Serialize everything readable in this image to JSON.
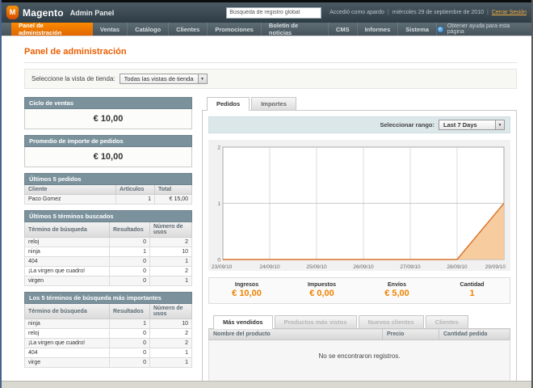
{
  "window": {
    "brand": "Magento",
    "brand_suffix": "Admin Panel",
    "logo_letter": "M",
    "search_value": "Búsqueda de registro global",
    "logged_in_text": "Accedió como apardo",
    "separator": "|",
    "date_text": "miércoles 29 de septiembre de 2010",
    "logout_label": "Cerrar Sesión"
  },
  "nav": {
    "items": [
      {
        "label": "Panel de administración",
        "active": true
      },
      {
        "label": "Ventas",
        "active": false
      },
      {
        "label": "Catálogo",
        "active": false
      },
      {
        "label": "Clientes",
        "active": false
      },
      {
        "label": "Promociones",
        "active": false
      },
      {
        "label": "Boletín de noticias",
        "active": false
      },
      {
        "label": "CMS",
        "active": false
      },
      {
        "label": "Informes",
        "active": false
      },
      {
        "label": "Sistema",
        "active": false
      }
    ],
    "help_label": "Obtener ayuda para esta página"
  },
  "page": {
    "title": "Panel de administración",
    "store_view_label": "Seleccione la vista de tienda:",
    "store_view_value": "Todas las vistas de tienda"
  },
  "sidebar": {
    "sales_box": {
      "title": "Ciclo de ventas",
      "value": "€ 10,00"
    },
    "avg_box": {
      "title": "Promedio de importe de pedidos",
      "value": "€ 10,00"
    },
    "last_orders": {
      "title": "Últimos 5 pedidos",
      "headers": {
        "c0": "Cliente",
        "c1": "Artículos",
        "c2": "Total"
      },
      "rows": [
        {
          "c0": "Paco Gomez",
          "c1": "1",
          "c2": "€ 15,00"
        }
      ]
    },
    "last_terms": {
      "title": "Últimos 5 términos buscados",
      "headers": {
        "c0": "Término de búsqueda",
        "c1": "Resultados",
        "c2": "Número de usos"
      },
      "rows": [
        {
          "c0": "reloj",
          "c1": "0",
          "c2": "2"
        },
        {
          "c0": "ninja",
          "c1": "1",
          "c2": "10"
        },
        {
          "c0": "404",
          "c1": "0",
          "c2": "1"
        },
        {
          "c0": "¡La virgen que cuadro!",
          "c1": "0",
          "c2": "2"
        },
        {
          "c0": "virgen",
          "c1": "0",
          "c2": "1"
        }
      ]
    },
    "top_terms": {
      "title": "Los 5 términos de búsqueda más importantes",
      "headers": {
        "c0": "Término de búsqueda",
        "c1": "Resultados",
        "c2": "Número de usos"
      },
      "rows": [
        {
          "c0": "ninja",
          "c1": "1",
          "c2": "10"
        },
        {
          "c0": "reloj",
          "c1": "0",
          "c2": "2"
        },
        {
          "c0": "¡La virgen que cuadro!",
          "c1": "0",
          "c2": "2"
        },
        {
          "c0": "404",
          "c1": "0",
          "c2": "1"
        },
        {
          "c0": "virge",
          "c1": "0",
          "c2": "1"
        }
      ]
    }
  },
  "main": {
    "tabs": [
      {
        "label": "Pedidos",
        "active": true
      },
      {
        "label": "Importes",
        "active": false
      }
    ],
    "range_label": "Seleccionar rango:",
    "range_value": "Last 7 Days",
    "stats": [
      {
        "label": "Ingresos",
        "value": "€ 10,00"
      },
      {
        "label": "Impuestos",
        "value": "€ 0,00"
      },
      {
        "label": "Envíos",
        "value": "€ 5,00"
      },
      {
        "label": "Cantidad",
        "value": "1"
      }
    ],
    "bottom_tabs": [
      {
        "label": "Más vendidos",
        "active": true
      },
      {
        "label": "Productos más vistos",
        "active": false
      },
      {
        "label": "Nuevos clientes",
        "active": false
      },
      {
        "label": "Clientes",
        "active": false
      }
    ],
    "products_table": {
      "headers": {
        "c0": "Nombre del producto",
        "c1": "Precio",
        "c2": "Cantidad pedida"
      },
      "empty_text": "No se encontraron registros."
    }
  },
  "chart_data": {
    "type": "area",
    "title": "Pedidos — Last 7 Days",
    "x": [
      "23/09/10",
      "24/09/10",
      "25/09/10",
      "26/09/10",
      "27/09/10",
      "28/09/10",
      "29/09/10"
    ],
    "series": [
      {
        "name": "Pedidos",
        "values": [
          0,
          0,
          0,
          0,
          0,
          0,
          1
        ]
      }
    ],
    "xlabel": "",
    "ylabel": "",
    "ylim": [
      0,
      2
    ],
    "yticks": [
      0,
      1,
      2
    ],
    "grid": true,
    "legend_position": "none",
    "line_color": "#d9772e",
    "fill_color": "#f6c795"
  },
  "colors": {
    "accent_orange": "#eb5e00",
    "nav_active_orange": "#f08200",
    "box_header": "#7b929c",
    "stat_value_orange": "#ef8200",
    "range_bar": "#dce7ea"
  }
}
